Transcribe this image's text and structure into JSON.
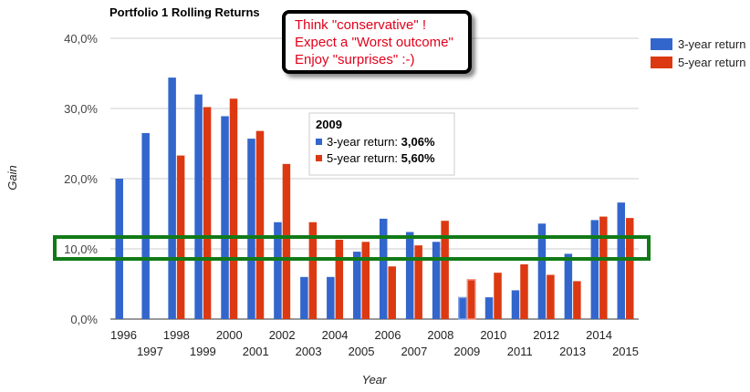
{
  "chart_data": {
    "type": "bar",
    "title": "Portfolio 1 Rolling Returns",
    "xlabel": "Year",
    "ylabel": "Gain",
    "ylim": [
      0,
      40
    ],
    "yticks": [
      "0,0%",
      "10,0%",
      "20,0%",
      "30,0%",
      "40,0%"
    ],
    "categories": [
      "1996",
      "1997",
      "1998",
      "1999",
      "2000",
      "2001",
      "2002",
      "2003",
      "2004",
      "2005",
      "2006",
      "2007",
      "2008",
      "2009",
      "2010",
      "2011",
      "2012",
      "2013",
      "2014",
      "2015"
    ],
    "series": [
      {
        "name": "3-year return",
        "color": "#3366cc",
        "values": [
          20.0,
          26.5,
          34.4,
          32.0,
          28.9,
          25.7,
          13.8,
          6.0,
          6.0,
          9.6,
          14.3,
          12.4,
          11.0,
          3.06,
          3.1,
          4.1,
          13.6,
          9.3,
          14.1,
          16.6
        ]
      },
      {
        "name": "5-year return",
        "color": "#dc3912",
        "values": [
          null,
          null,
          23.3,
          30.2,
          31.4,
          26.8,
          22.1,
          13.8,
          11.3,
          11.0,
          7.5,
          10.5,
          14.0,
          5.6,
          6.6,
          7.8,
          6.3,
          5.4,
          14.6,
          14.4
        ]
      }
    ],
    "grid": true,
    "legend_position": "right",
    "tooltip": {
      "category": "2009",
      "title": "2009",
      "rows": [
        {
          "label": "3-year return:",
          "value": "3,06%",
          "color": "#3366cc"
        },
        {
          "label": "5-year return:",
          "value": "5,60%",
          "color": "#dc3912"
        }
      ]
    }
  },
  "annotation": {
    "lines": [
      "Think \"conservative\" !",
      "Expect a \"Worst outcome\"",
      "Enjoy \"surprises\" :-)"
    ],
    "text_color": "#e3001a",
    "highlight_color": "#117a17",
    "highlight_value": 10
  }
}
